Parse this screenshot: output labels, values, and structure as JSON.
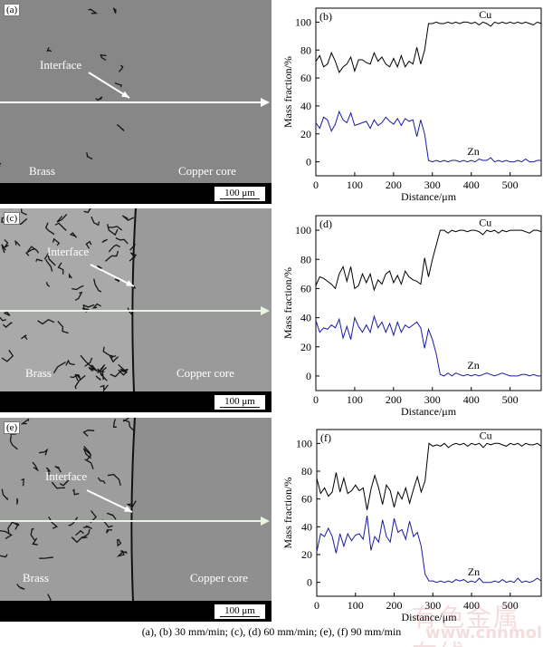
{
  "micrographs": [
    {
      "panel": "(a)",
      "interface": "Interface",
      "left_label": "Brass",
      "right_label": "Copper core",
      "scale_bar": "100 μm"
    },
    {
      "panel": "(c)",
      "interface": "Interface",
      "left_label": "Brass",
      "right_label": "Copper core",
      "scale_bar": "100 μm"
    },
    {
      "panel": "(e)",
      "interface": "Interface",
      "left_label": "Brass",
      "right_label": "Copper core",
      "scale_bar": "100 μm"
    }
  ],
  "chart_data": [
    {
      "type": "line",
      "panel": "(b)",
      "xlabel": "Distance/μm",
      "ylabel": "Mass fraction/%",
      "xlim": [
        0,
        580
      ],
      "ylim": [
        -10,
        110
      ],
      "xticks": [
        0,
        100,
        200,
        300,
        400,
        500
      ],
      "yticks": [
        0,
        20,
        40,
        60,
        80,
        100
      ],
      "x_step": 10,
      "series": [
        {
          "name": "Cu",
          "color": "#000000",
          "values": [
            72,
            76,
            68,
            70,
            78,
            72,
            64,
            68,
            70,
            75,
            65,
            73,
            73,
            71,
            70,
            78,
            72,
            75,
            70,
            68,
            74,
            68,
            76,
            68,
            72,
            70,
            82,
            70,
            80,
            99,
            99,
            100,
            99,
            99,
            100,
            99,
            100,
            99,
            100,
            100,
            99,
            100,
            98,
            100,
            99,
            97,
            100,
            99,
            100,
            99,
            100,
            99,
            100,
            99,
            100,
            99,
            98,
            100,
            99
          ]
        },
        {
          "name": "Zn",
          "color": "#1a1aa0",
          "values": [
            28,
            24,
            32,
            30,
            22,
            27,
            36,
            30,
            28,
            35,
            26,
            27,
            28,
            29,
            24,
            30,
            26,
            28,
            32,
            29,
            27,
            31,
            26,
            31,
            29,
            30,
            18,
            30,
            20,
            1,
            0,
            1,
            0,
            1,
            0,
            1,
            1,
            0,
            1,
            0,
            1,
            0,
            2,
            1,
            1,
            3,
            0,
            1,
            0,
            1,
            0,
            0,
            1,
            0,
            2,
            0,
            0,
            1,
            1
          ]
        }
      ]
    },
    {
      "type": "line",
      "panel": "(d)",
      "xlabel": "Distance/μm",
      "ylabel": "Mass fraction/%",
      "xlim": [
        0,
        580
      ],
      "ylim": [
        -10,
        110
      ],
      "xticks": [
        0,
        100,
        200,
        300,
        400,
        500
      ],
      "yticks": [
        0,
        20,
        40,
        60,
        80,
        100
      ],
      "x_step": 10,
      "series": [
        {
          "name": "Cu",
          "color": "#000000",
          "values": [
            62,
            68,
            67,
            65,
            63,
            60,
            70,
            75,
            65,
            75,
            60,
            62,
            70,
            64,
            70,
            59,
            66,
            63,
            70,
            72,
            64,
            69,
            63,
            72,
            68,
            66,
            65,
            63,
            81,
            68,
            80,
            90,
            100,
            100,
            98,
            100,
            99,
            100,
            100,
            99,
            100,
            100,
            99,
            97,
            100,
            99,
            100,
            98,
            100,
            99,
            100,
            100,
            100,
            100,
            99,
            98,
            100,
            100,
            99
          ]
        },
        {
          "name": "Zn",
          "color": "#1a1aa0",
          "values": [
            38,
            30,
            33,
            32,
            35,
            33,
            39,
            26,
            34,
            25,
            40,
            34,
            30,
            35,
            30,
            41,
            33,
            37,
            30,
            36,
            28,
            37,
            30,
            35,
            33,
            35,
            37,
            33,
            19,
            32,
            25,
            15,
            1,
            0,
            2,
            0,
            2,
            1,
            0,
            1,
            0,
            1,
            0,
            1,
            2,
            1,
            0,
            1,
            2,
            1,
            0,
            0,
            0,
            1,
            1,
            0,
            1,
            0,
            0
          ]
        }
      ]
    },
    {
      "type": "line",
      "panel": "(f)",
      "xlabel": "Distance/μm",
      "ylabel": "Mass fraction/%",
      "xlim": [
        0,
        580
      ],
      "ylim": [
        -10,
        110
      ],
      "xticks": [
        0,
        100,
        200,
        300,
        400,
        500
      ],
      "yticks": [
        0,
        20,
        40,
        60,
        80,
        100
      ],
      "x_step": 10,
      "series": [
        {
          "name": "Cu",
          "color": "#000000",
          "values": [
            75,
            64,
            68,
            62,
            65,
            79,
            65,
            75,
            64,
            66,
            70,
            66,
            68,
            52,
            67,
            77,
            68,
            56,
            70,
            66,
            54,
            65,
            60,
            68,
            57,
            67,
            76,
            65,
            73,
            100,
            98,
            99,
            98,
            100,
            97,
            99,
            100,
            99,
            100,
            98,
            100,
            99,
            100,
            97,
            100,
            99,
            100,
            100,
            99,
            98,
            100,
            99,
            100,
            98,
            100,
            99,
            99,
            100,
            98
          ]
        },
        {
          "name": "Zn",
          "color": "#1a1aa0",
          "values": [
            22,
            35,
            33,
            39,
            33,
            21,
            35,
            26,
            35,
            30,
            34,
            35,
            31,
            48,
            23,
            33,
            29,
            45,
            33,
            29,
            46,
            36,
            38,
            31,
            44,
            33,
            36,
            26,
            6,
            1,
            1,
            0,
            1,
            0,
            1,
            0,
            2,
            1,
            2,
            0,
            1,
            0,
            3,
            0,
            0,
            0,
            1,
            0,
            2,
            0,
            1,
            0,
            3,
            0,
            1,
            0,
            1,
            3,
            1
          ]
        }
      ]
    }
  ],
  "caption": "(a), (b) 30 mm/min; (c), (d) 60 mm/min; (e), (f) 90 mm/min",
  "watermark": {
    "text": "有色金属在线",
    "url": "www.cnnmol.com"
  }
}
